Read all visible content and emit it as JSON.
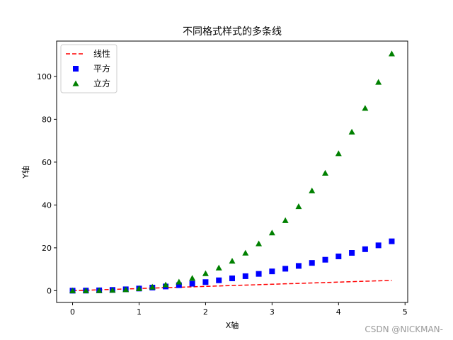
{
  "chart_data": {
    "type": "line",
    "title": "不同格式样式的多条线",
    "xlabel": "X轴",
    "ylabel": "Y轴",
    "xlim": [
      -0.24,
      5.04
    ],
    "ylim": [
      -5.5,
      116.5
    ],
    "xticks": [
      0,
      1,
      2,
      3,
      4,
      5
    ],
    "yticks": [
      0,
      20,
      40,
      60,
      80,
      100
    ],
    "grid": false,
    "legend_position": "top-left",
    "x": [
      0.0,
      0.2,
      0.4,
      0.6,
      0.8,
      1.0,
      1.2,
      1.4,
      1.6,
      1.8,
      2.0,
      2.2,
      2.4,
      2.6,
      2.8,
      3.0,
      3.2,
      3.4,
      3.6,
      3.8,
      4.0,
      4.2,
      4.4,
      4.6,
      4.8
    ],
    "series": [
      {
        "name": "线性",
        "style": "dashed-line",
        "color": "#ff0000",
        "values": [
          0.0,
          0.2,
          0.4,
          0.6,
          0.8,
          1.0,
          1.2,
          1.4,
          1.6,
          1.8,
          2.0,
          2.2,
          2.4,
          2.6,
          2.8,
          3.0,
          3.2,
          3.4,
          3.6,
          3.8,
          4.0,
          4.2,
          4.4,
          4.6,
          4.8
        ]
      },
      {
        "name": "平方",
        "style": "square-marker",
        "color": "#0000ff",
        "values": [
          0.0,
          0.04,
          0.16,
          0.36,
          0.64,
          1.0,
          1.44,
          1.96,
          2.56,
          3.24,
          4.0,
          4.84,
          5.76,
          6.76,
          7.84,
          9.0,
          10.24,
          11.56,
          12.96,
          14.44,
          16.0,
          17.64,
          19.36,
          21.16,
          23.04
        ]
      },
      {
        "name": "立方",
        "style": "triangle-marker",
        "color": "#008000",
        "values": [
          0.0,
          0.008,
          0.064,
          0.216,
          0.512,
          1.0,
          1.728,
          2.744,
          4.096,
          5.832,
          8.0,
          10.648,
          13.824,
          17.576,
          21.952,
          27.0,
          32.768,
          39.304,
          46.656,
          54.872,
          64.0,
          74.088,
          85.184,
          97.336,
          110.592
        ]
      }
    ]
  },
  "watermark": "CSDN @NICKMAN-"
}
